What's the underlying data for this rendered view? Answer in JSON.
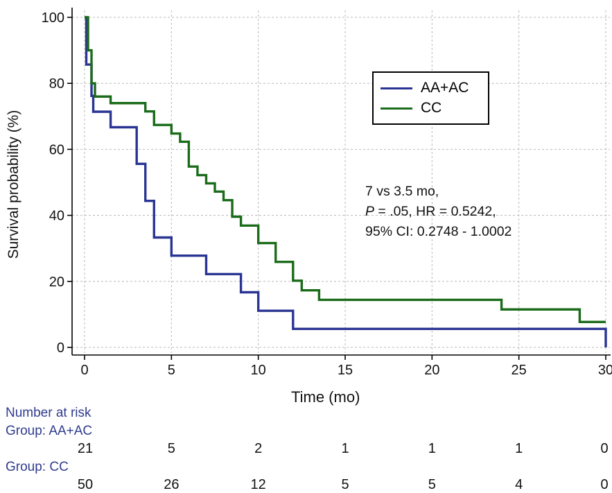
{
  "chart_data": {
    "type": "line",
    "step": true,
    "xlabel": "Time (mo)",
    "ylabel": "Survival probability (%)",
    "xlim": [
      0,
      30
    ],
    "ylim": [
      0,
      100
    ],
    "xticks": [
      "0",
      "5",
      "10",
      "15",
      "20",
      "25",
      "30"
    ],
    "yticks": [
      "0",
      "20",
      "40",
      "60",
      "80",
      "100"
    ],
    "grid": true,
    "legend_position": "top-right",
    "series": [
      {
        "name": "AA+AC",
        "color": "#2a3593",
        "points": [
          [
            0,
            100
          ],
          [
            0.1,
            85.7
          ],
          [
            0.4,
            76.2
          ],
          [
            0.5,
            71.4
          ],
          [
            1.5,
            66.7
          ],
          [
            3,
            55.6
          ],
          [
            3.5,
            44.4
          ],
          [
            4,
            33.3
          ],
          [
            5,
            27.8
          ],
          [
            7,
            22.2
          ],
          [
            9,
            16.7
          ],
          [
            10,
            11.1
          ],
          [
            12,
            5.6
          ],
          [
            30,
            5.6
          ],
          [
            30,
            0
          ]
        ]
      },
      {
        "name": "CC",
        "color": "#1a6b1a",
        "points": [
          [
            0,
            100
          ],
          [
            0.2,
            90
          ],
          [
            0.4,
            80
          ],
          [
            0.6,
            76
          ],
          [
            1.5,
            74
          ],
          [
            3.5,
            71.5
          ],
          [
            4,
            67.4
          ],
          [
            5,
            64.8
          ],
          [
            5.5,
            62.3
          ],
          [
            6,
            54.8
          ],
          [
            6.5,
            52.2
          ],
          [
            7,
            49.7
          ],
          [
            7.5,
            47.2
          ],
          [
            8,
            44.6
          ],
          [
            8.5,
            39.6
          ],
          [
            9,
            36.9
          ],
          [
            10,
            31.6
          ],
          [
            11,
            25.9
          ],
          [
            12,
            20.2
          ],
          [
            12.5,
            17.3
          ],
          [
            13.5,
            14.4
          ],
          [
            24,
            11.5
          ],
          [
            28.5,
            7.7
          ],
          [
            30,
            7.7
          ]
        ]
      }
    ],
    "annotation": {
      "line1": "7 vs  3.5 mo,",
      "p_label": "P",
      "line2": " = .05, HR = 0.5242,",
      "line3": "95% CI: 0.2748 - 1.0002"
    }
  },
  "number_at_risk": {
    "title": "Number at risk",
    "groups": [
      {
        "label": "Group: AA+AC",
        "counts": [
          "21",
          "5",
          "2",
          "1",
          "1",
          "1",
          "0"
        ]
      },
      {
        "label": "Group: CC",
        "counts": [
          "50",
          "26",
          "12",
          "5",
          "5",
          "4",
          "0"
        ]
      }
    ]
  }
}
